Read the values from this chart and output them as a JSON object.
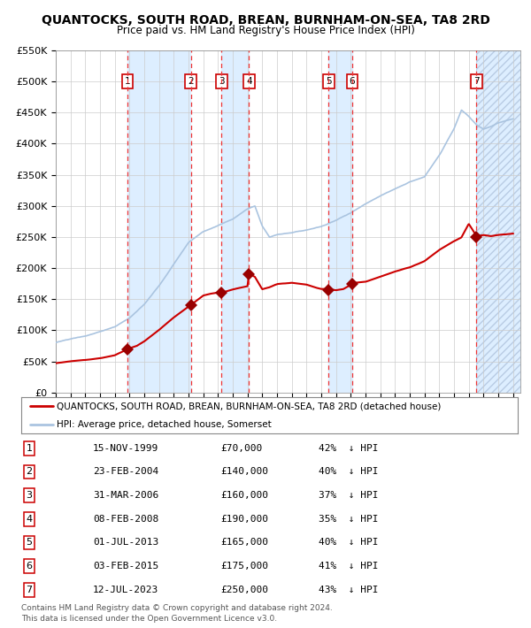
{
  "title": "QUANTOCKS, SOUTH ROAD, BREAN, BURNHAM-ON-SEA, TA8 2RD",
  "subtitle": "Price paid vs. HM Land Registry's House Price Index (HPI)",
  "legend_line1": "QUANTOCKS, SOUTH ROAD, BREAN, BURNHAM-ON-SEA, TA8 2RD (detached house)",
  "legend_line2": "HPI: Average price, detached house, Somerset",
  "footer1": "Contains HM Land Registry data © Crown copyright and database right 2024.",
  "footer2": "This data is licensed under the Open Government Licence v3.0.",
  "ylim": [
    0,
    550000
  ],
  "yticks": [
    0,
    50000,
    100000,
    150000,
    200000,
    250000,
    300000,
    350000,
    400000,
    450000,
    500000,
    550000
  ],
  "ytick_labels": [
    "£0",
    "£50K",
    "£100K",
    "£150K",
    "£200K",
    "£250K",
    "£300K",
    "£350K",
    "£400K",
    "£450K",
    "£500K",
    "£550K"
  ],
  "xlim_start": 1995.0,
  "xlim_end": 2026.5,
  "transactions": [
    {
      "num": 1,
      "date": "15-NOV-1999",
      "year": 1999.87,
      "price": 70000,
      "pct": "42%",
      "dir": "↓"
    },
    {
      "num": 2,
      "date": "23-FEB-2004",
      "year": 2004.15,
      "price": 140000,
      "pct": "40%",
      "dir": "↓"
    },
    {
      "num": 3,
      "date": "31-MAR-2006",
      "year": 2006.25,
      "price": 160000,
      "pct": "37%",
      "dir": "↓"
    },
    {
      "num": 4,
      "date": "08-FEB-2008",
      "year": 2008.1,
      "price": 190000,
      "pct": "35%",
      "dir": "↓"
    },
    {
      "num": 5,
      "date": "01-JUL-2013",
      "year": 2013.5,
      "price": 165000,
      "pct": "40%",
      "dir": "↓"
    },
    {
      "num": 6,
      "date": "03-FEB-2015",
      "year": 2015.09,
      "price": 175000,
      "pct": "41%",
      "dir": "↓"
    },
    {
      "num": 7,
      "date": "12-JUL-2023",
      "year": 2023.53,
      "price": 250000,
      "pct": "43%",
      "dir": "↓"
    }
  ],
  "hpi_color": "#aac4e0",
  "price_color": "#cc0000",
  "marker_color": "#990000",
  "dashed_color": "#ee3333",
  "bg_band_color": "#ddeeff",
  "grid_color": "#cccccc",
  "box_color": "#cc0000",
  "hpi_points": [
    [
      1995.0,
      80000
    ],
    [
      1996.0,
      85000
    ],
    [
      1997.0,
      90000
    ],
    [
      1998.0,
      98000
    ],
    [
      1999.0,
      105000
    ],
    [
      2000.0,
      118000
    ],
    [
      2001.0,
      140000
    ],
    [
      2002.0,
      170000
    ],
    [
      2003.0,
      205000
    ],
    [
      2004.0,
      240000
    ],
    [
      2005.0,
      258000
    ],
    [
      2006.0,
      268000
    ],
    [
      2007.0,
      278000
    ],
    [
      2008.0,
      295000
    ],
    [
      2008.5,
      300000
    ],
    [
      2009.0,
      268000
    ],
    [
      2009.5,
      250000
    ],
    [
      2010.0,
      255000
    ],
    [
      2011.0,
      258000
    ],
    [
      2012.0,
      262000
    ],
    [
      2013.0,
      268000
    ],
    [
      2014.0,
      278000
    ],
    [
      2015.0,
      290000
    ],
    [
      2016.0,
      305000
    ],
    [
      2017.0,
      318000
    ],
    [
      2018.0,
      330000
    ],
    [
      2019.0,
      342000
    ],
    [
      2020.0,
      350000
    ],
    [
      2021.0,
      385000
    ],
    [
      2022.0,
      428000
    ],
    [
      2022.5,
      458000
    ],
    [
      2023.0,
      448000
    ],
    [
      2023.5,
      435000
    ],
    [
      2024.0,
      428000
    ],
    [
      2024.5,
      432000
    ],
    [
      2025.0,
      438000
    ],
    [
      2026.0,
      445000
    ]
  ],
  "price_points": [
    [
      1995.0,
      47000
    ],
    [
      1996.0,
      50000
    ],
    [
      1997.0,
      52000
    ],
    [
      1998.0,
      55000
    ],
    [
      1999.0,
      60000
    ],
    [
      1999.87,
      70000
    ],
    [
      2000.5,
      75000
    ],
    [
      2001.0,
      82000
    ],
    [
      2002.0,
      100000
    ],
    [
      2003.0,
      120000
    ],
    [
      2004.15,
      140000
    ],
    [
      2005.0,
      155000
    ],
    [
      2005.5,
      158000
    ],
    [
      2006.0,
      160000
    ],
    [
      2006.25,
      160000
    ],
    [
      2007.0,
      165000
    ],
    [
      2008.0,
      170000
    ],
    [
      2008.1,
      190000
    ],
    [
      2008.5,
      185000
    ],
    [
      2009.0,
      165000
    ],
    [
      2009.5,
      168000
    ],
    [
      2010.0,
      173000
    ],
    [
      2011.0,
      175000
    ],
    [
      2012.0,
      172000
    ],
    [
      2012.5,
      168000
    ],
    [
      2013.0,
      165000
    ],
    [
      2013.5,
      165000
    ],
    [
      2014.0,
      163000
    ],
    [
      2014.5,
      165000
    ],
    [
      2015.0,
      172000
    ],
    [
      2015.09,
      175000
    ],
    [
      2016.0,
      177000
    ],
    [
      2017.0,
      185000
    ],
    [
      2018.0,
      193000
    ],
    [
      2019.0,
      200000
    ],
    [
      2020.0,
      210000
    ],
    [
      2021.0,
      228000
    ],
    [
      2022.0,
      242000
    ],
    [
      2022.5,
      248000
    ],
    [
      2023.0,
      270000
    ],
    [
      2023.53,
      250000
    ],
    [
      2024.0,
      252000
    ],
    [
      2024.5,
      250000
    ],
    [
      2025.0,
      252000
    ],
    [
      2026.0,
      254000
    ]
  ]
}
